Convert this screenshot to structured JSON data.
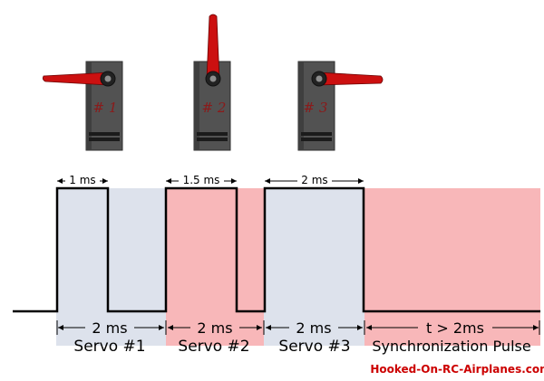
{
  "servos": [
    {
      "label": "# 1",
      "horn": "left"
    },
    {
      "label": "# 2",
      "horn": "up"
    },
    {
      "label": "# 3",
      "horn": "right"
    }
  ],
  "pulse_labels": [
    "1 ms",
    "1.5 ms",
    "2 ms"
  ],
  "frame_labels": [
    "2 ms",
    "2 ms",
    "2 ms",
    "t > 2ms"
  ],
  "section_labels": [
    "Servo #1",
    "Servo #2",
    "Servo #3",
    "Synchronization Pulse"
  ],
  "watermark": "Hooked-On-RC-Airplanes.com",
  "colors": {
    "blue_band": "#dde2ec",
    "pink_band": "#f8b7b9",
    "signal": "#000000",
    "servo_body": "#505050",
    "horn": "#cc1010",
    "servo_number": "#8b1a1a",
    "watermark": "#cc0000"
  }
}
